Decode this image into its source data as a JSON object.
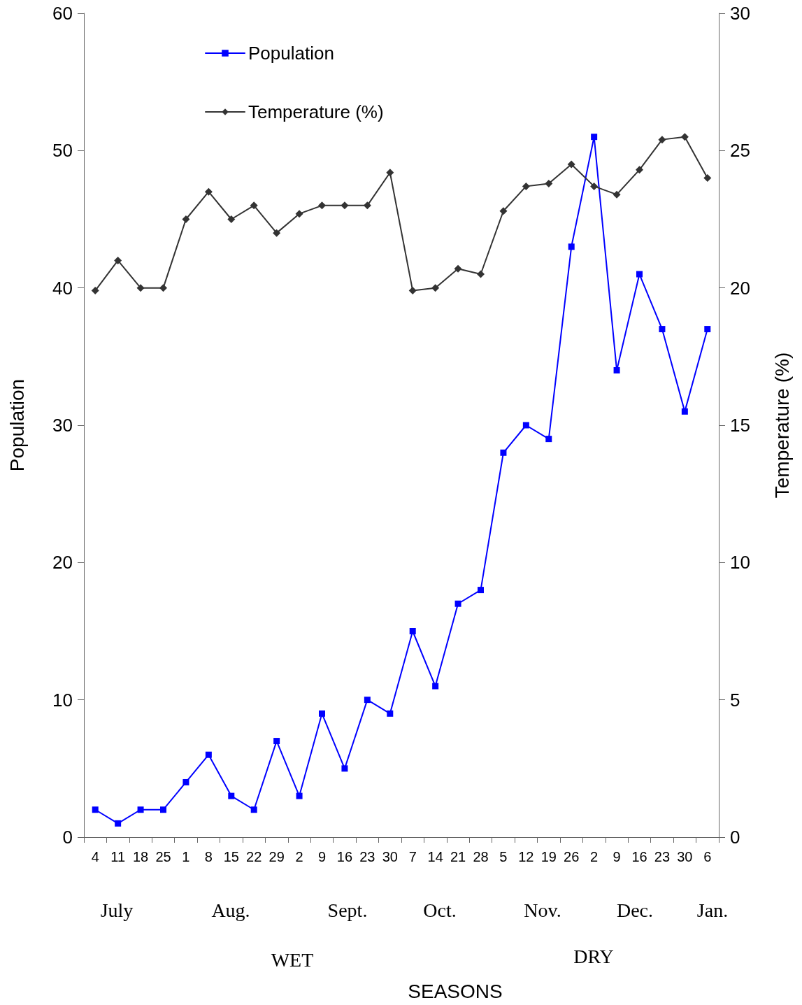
{
  "chart_data": {
    "type": "line",
    "ylabel": "Population",
    "y2label": "Temperature (%)",
    "categories": [
      "4",
      "11",
      "18",
      "25",
      "1",
      "8",
      "15",
      "22",
      "29",
      "2",
      "9",
      "16",
      "23",
      "30",
      "7",
      "14",
      "21",
      "28",
      "5",
      "12",
      "19",
      "26",
      "2",
      "9",
      "16",
      "23",
      "30",
      "6"
    ],
    "series": [
      {
        "name": "Population",
        "color": "#0000ff",
        "marker": "square",
        "values": [
          2,
          1,
          2,
          2,
          4,
          6,
          3,
          2,
          7,
          3,
          9,
          5,
          10,
          9,
          15,
          11,
          17,
          18,
          28,
          30,
          29,
          43,
          51,
          34,
          41,
          37,
          31,
          37
        ]
      },
      {
        "name": "Temperature (%)",
        "color": "#333333",
        "marker": "diamond",
        "axis": "y2",
        "values": [
          19.9,
          21.0,
          20,
          20,
          22.5,
          23.5,
          22.5,
          23.0,
          22.0,
          22.7,
          23.0,
          23.0,
          23.0,
          24.2,
          19.9,
          20,
          20.7,
          20.5,
          22.8,
          23.7,
          23.8,
          24.5,
          23.7,
          23.4,
          24.3,
          25.4,
          25.5,
          24.0
        ]
      }
    ],
    "ylim": [
      0,
      60
    ],
    "yticks": [
      0,
      10,
      20,
      30,
      40,
      50,
      60
    ],
    "y2lim": [
      0,
      30
    ],
    "y2ticks": [
      0,
      5,
      10,
      15,
      20,
      25,
      30
    ],
    "annotations": [
      "July",
      "Aug.",
      "Sept.",
      "Oct.",
      "Nov.",
      "Dec.",
      "Jan.",
      "WET",
      "DRY",
      "SEASONS"
    ],
    "grid": false,
    "legend": "top left",
    "line_style": "solid"
  }
}
